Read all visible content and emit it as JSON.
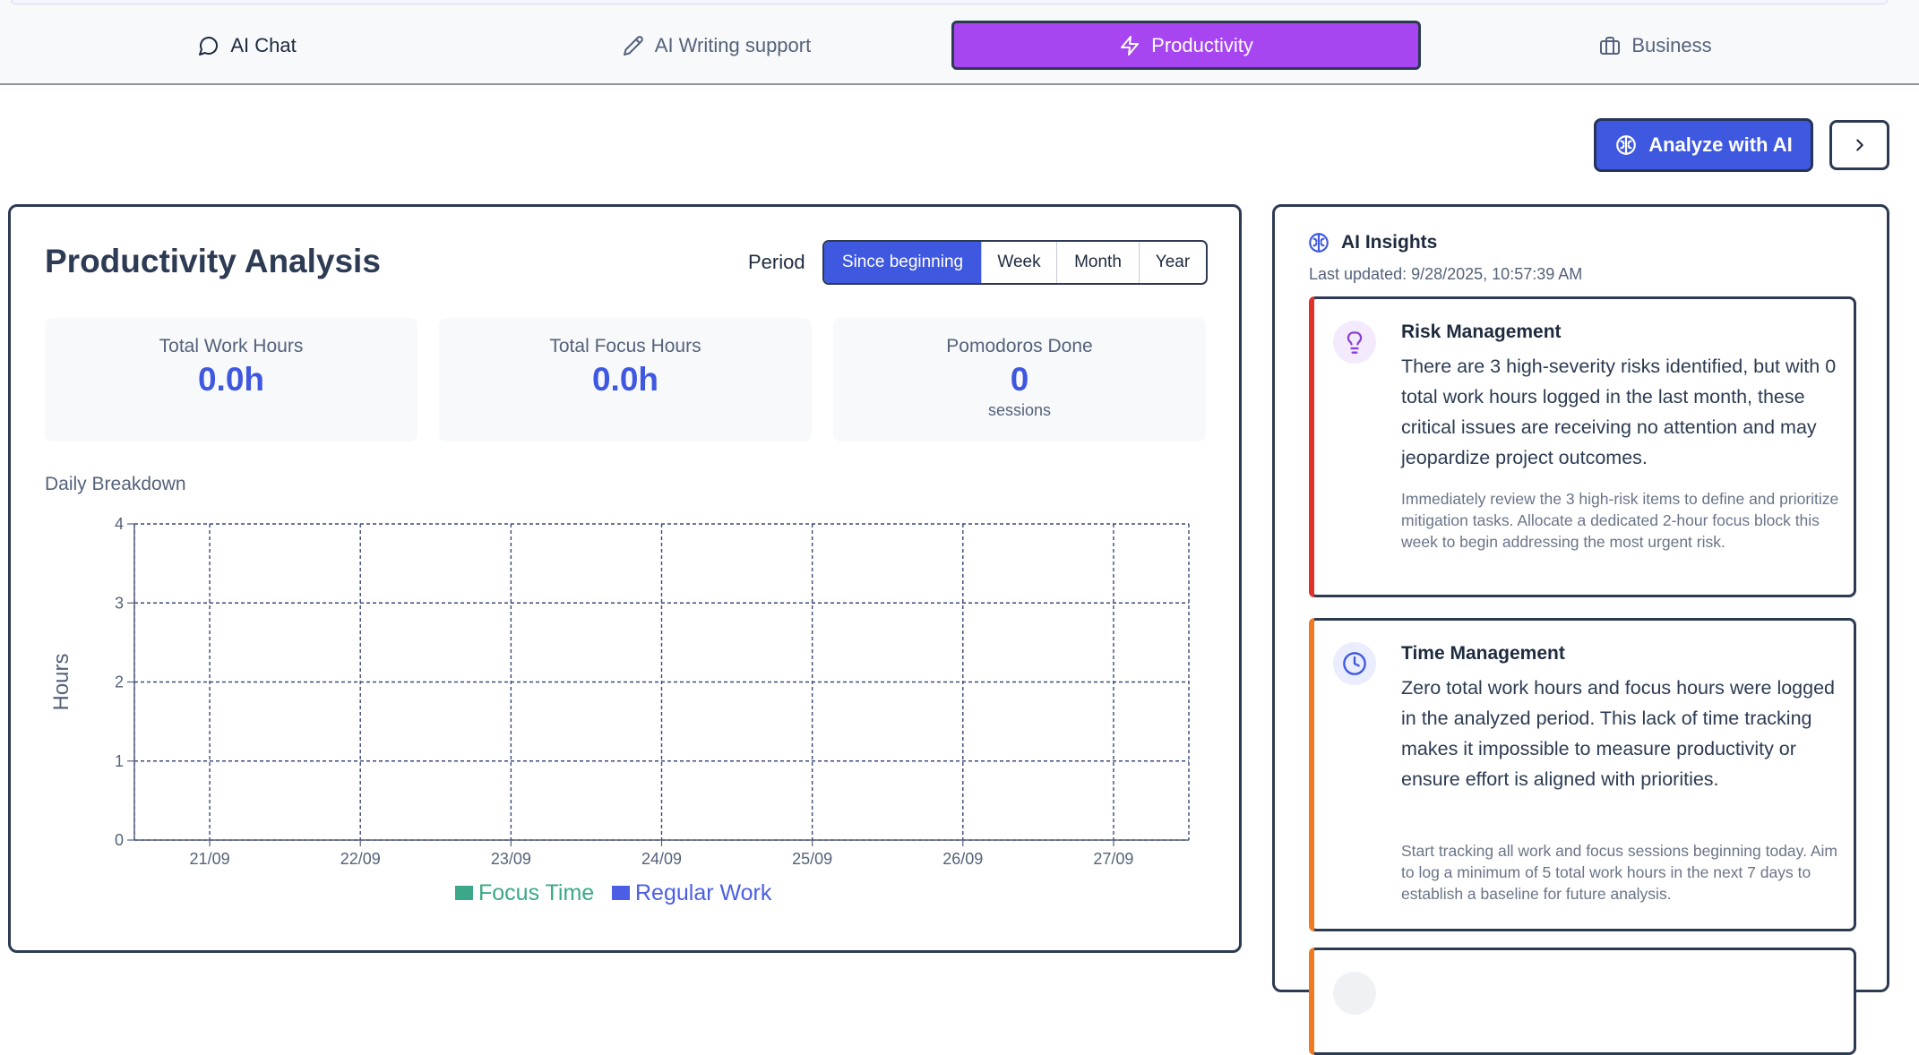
{
  "tabs": [
    {
      "label": "AI Chat",
      "icon": "chat-bubble-icon"
    },
    {
      "label": "AI Writing support",
      "icon": "pencil-icon"
    },
    {
      "label": "Productivity",
      "icon": "lightning-icon",
      "active": true
    },
    {
      "label": "Business",
      "icon": "briefcase-icon"
    }
  ],
  "toolbar": {
    "analyze_label": "Analyze with AI",
    "analyze_icon": "brain-icon",
    "next_icon": "chevron-right-icon"
  },
  "productivity": {
    "title": "Productivity Analysis",
    "period_label": "Period",
    "periods": [
      "Since beginning",
      "Week",
      "Month",
      "Year"
    ],
    "selected_period": "Since beginning",
    "stats": [
      {
        "label": "Total Work Hours",
        "value": "0.0h"
      },
      {
        "label": "Total Focus Hours",
        "value": "0.0h"
      },
      {
        "label": "Pomodoros Done",
        "value": "0",
        "sub": "sessions"
      }
    ],
    "breakdown_title": "Daily Breakdown"
  },
  "chart_data": {
    "type": "bar",
    "categories": [
      "21/09",
      "22/09",
      "23/09",
      "24/09",
      "25/09",
      "26/09",
      "27/09"
    ],
    "series": [
      {
        "name": "Focus Time",
        "values": [
          0,
          0,
          0,
          0,
          0,
          0,
          0
        ],
        "color": "#3aa889"
      },
      {
        "name": "Regular Work",
        "values": [
          0,
          0,
          0,
          0,
          0,
          0,
          0
        ],
        "color": "#4b5ee4"
      }
    ],
    "ylabel": "Hours",
    "ylim": [
      0,
      4
    ],
    "yticks": [
      0,
      1,
      2,
      3,
      4
    ],
    "grid": true,
    "legend": "bottom-center"
  },
  "insights": {
    "title": "AI Insights",
    "last_updated": "Last updated: 9/28/2025, 10:57:39 AM",
    "cards": [
      {
        "title": "Risk Management",
        "icon": "lightbulb-icon",
        "accent": "#e0312b",
        "body": "There are 3 high-severity risks identified, but with 0 total work hours logged in the last month, these critical issues are receiving no attention and may jeopardize project outcomes.",
        "recommendation": "Immediately review the 3 high-risk items to define and prioritize mitigation tasks. Allocate a dedicated 2-hour focus block this week to begin addressing the most urgent risk."
      },
      {
        "title": "Time Management",
        "icon": "clock-icon",
        "accent": "#f07a20",
        "body": "Zero total work hours and focus hours were logged in the analyzed period. This lack of time tracking makes it impossible to measure productivity or ensure effort is aligned with priorities.",
        "recommendation": "Start tracking all work and focus sessions beginning today. Aim to log a minimum of 5 total work hours in the next 7 days to establish a baseline for future analysis."
      }
    ],
    "third_card_accent": "#f07a20"
  }
}
